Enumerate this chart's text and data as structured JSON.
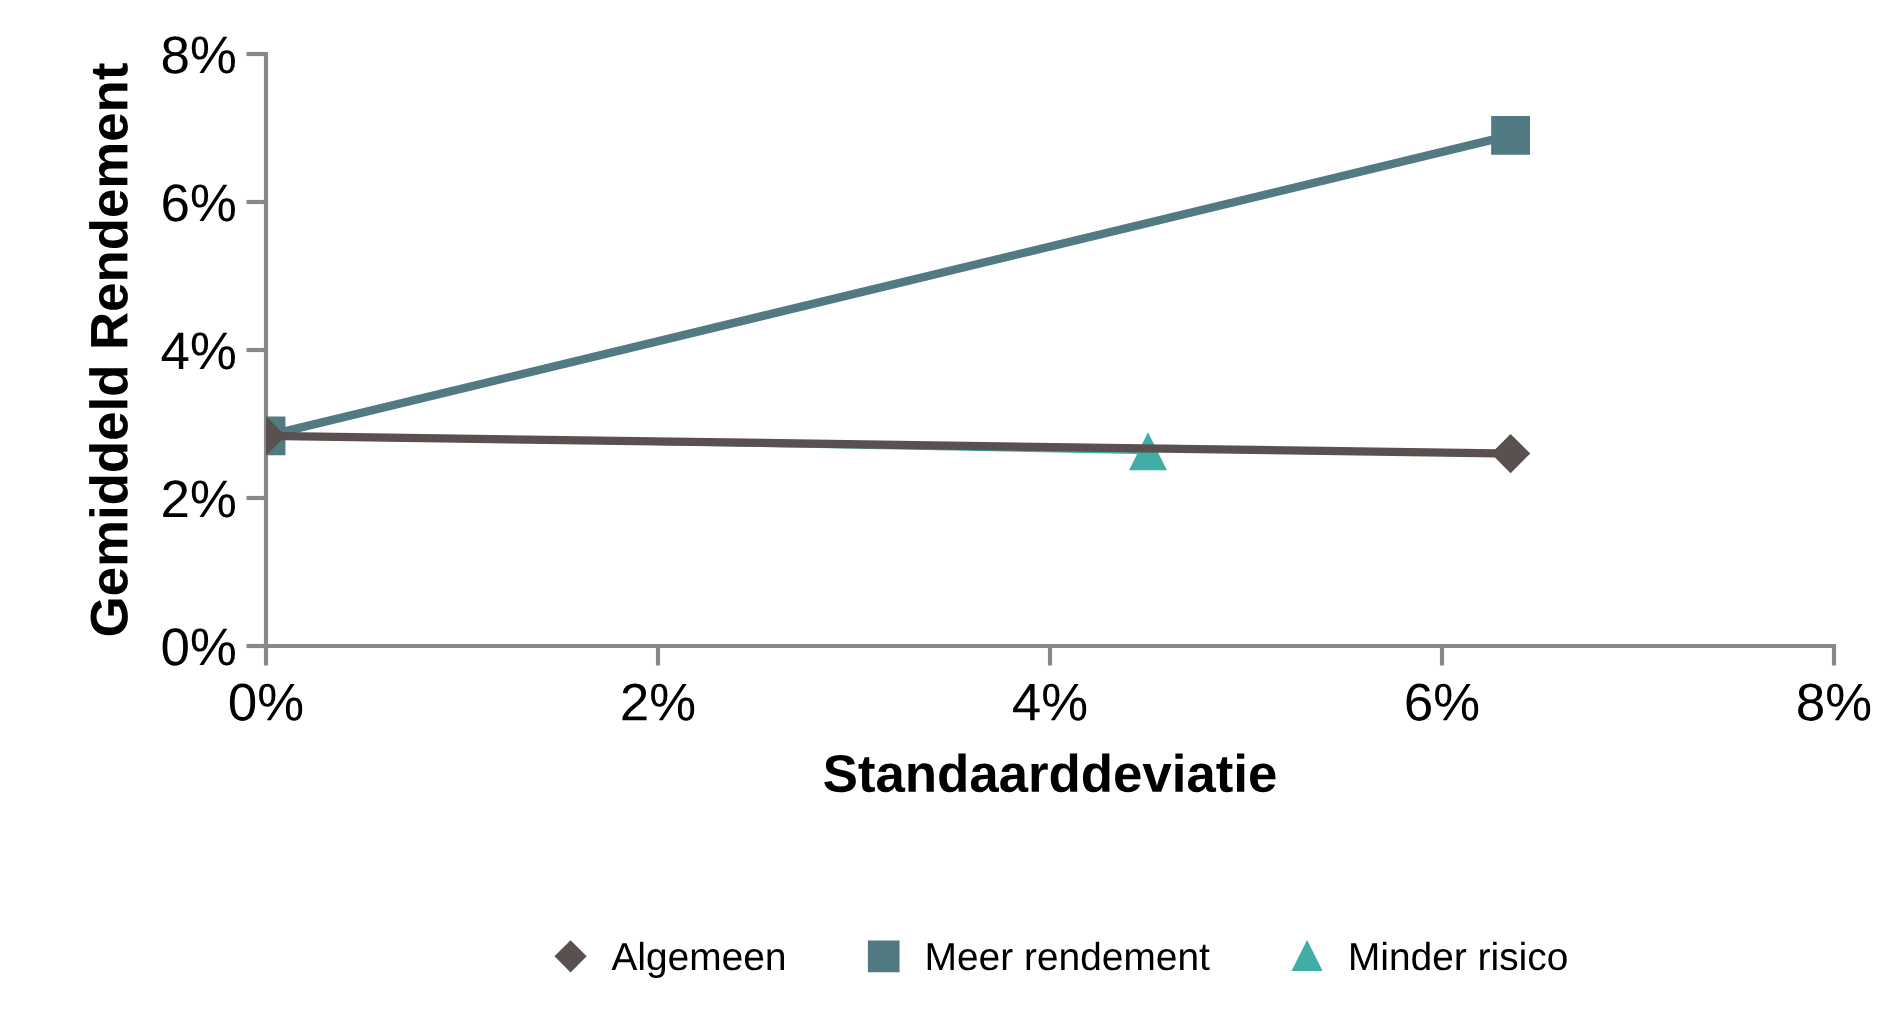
{
  "chart_data": {
    "type": "line",
    "xlabel": "Standaarddeviatie",
    "ylabel": "Gemiddeld Rendement",
    "xlim": [
      0,
      8
    ],
    "xticks": [
      {
        "value": 0,
        "label": "0%"
      },
      {
        "value": 2,
        "label": "2%"
      },
      {
        "value": 4,
        "label": "4%"
      },
      {
        "value": 6,
        "label": "6%"
      },
      {
        "value": 8,
        "label": "8%"
      }
    ],
    "ylim": [
      0,
      8
    ],
    "yticks": [
      {
        "value": 0,
        "label": "0%"
      },
      {
        "value": 2,
        "label": "2%"
      },
      {
        "value": 4,
        "label": "4%"
      },
      {
        "value": 6,
        "label": "6%"
      },
      {
        "value": 8,
        "label": "8%"
      }
    ],
    "grid": false,
    "legend": "bottom",
    "series": [
      {
        "name": "Algemeen",
        "color": "#5a5050",
        "marker": "diamond",
        "x": [
          0,
          6.35
        ],
        "values": [
          2.84,
          2.6
        ]
      },
      {
        "name": "Meer rendement",
        "color": "#527a82",
        "marker": "square",
        "x": [
          0,
          6.35
        ],
        "values": [
          2.84,
          6.9
        ]
      },
      {
        "name": "Minder risico",
        "color": "#40ada6",
        "marker": "triangle",
        "x": [
          0,
          4.5
        ],
        "values": [
          2.84,
          2.62
        ]
      }
    ]
  }
}
